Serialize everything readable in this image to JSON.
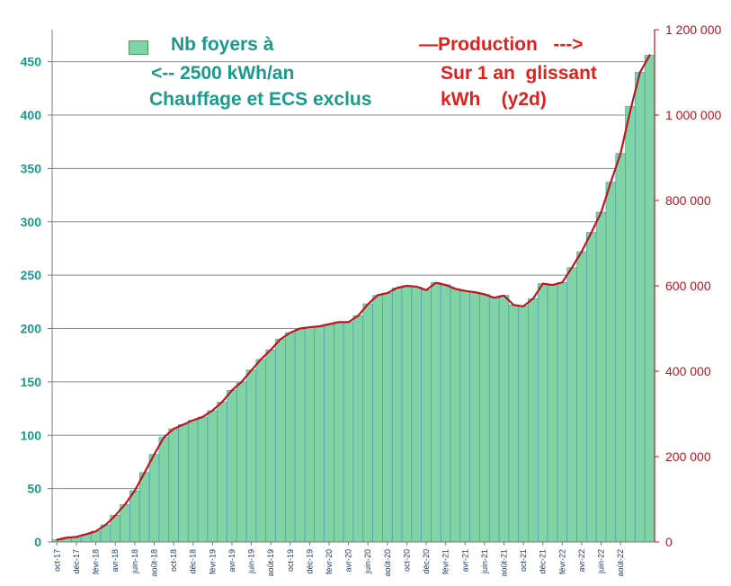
{
  "chart_data": {
    "type": "bar+line",
    "legend": {
      "bars_line1": "Nb foyers à",
      "bars_line2": "<-- 2500 kWh/an",
      "bars_line3": "Chauffage et ECS exclus",
      "line_line1": "—Production   --->",
      "line_line2": "Sur 1 an  glissant",
      "line_line3": "kWh    (y2d)"
    },
    "left_axis": {
      "ylim": [
        0,
        480
      ],
      "ticks": [
        0,
        50,
        100,
        150,
        200,
        250,
        300,
        350,
        400,
        450
      ],
      "tick_labels": [
        "0",
        "50",
        "100",
        "150",
        "200",
        "250",
        "300",
        "350",
        "400",
        "450"
      ]
    },
    "right_axis": {
      "ylim": [
        0,
        1200000
      ],
      "ticks": [
        0,
        200000,
        400000,
        600000,
        800000,
        1000000,
        1200000
      ],
      "tick_labels": [
        "0",
        "200 000",
        "400 000",
        "600 000",
        "800 000",
        "1 000 000",
        "1 200 000"
      ]
    },
    "x_tick_labels": [
      "oct-17",
      "déc-17",
      "févr-18",
      "avr-18",
      "juin-18",
      "août-18",
      "oct-18",
      "déc-18",
      "févr-19",
      "avr-19",
      "juin-19",
      "août-19",
      "oct-19",
      "déc-19",
      "févr-20",
      "avr-20",
      "juin-20",
      "août-20",
      "oct-20",
      "déc-20",
      "févr-21",
      "avr-21",
      "juin-21",
      "août-21",
      "oct-21",
      "déc-21",
      "févr-22",
      "avr-22",
      "juin-22",
      "août-22"
    ],
    "series": [
      {
        "name": "Nb foyers à 2500 kWh/an",
        "axis": "left",
        "type": "bar",
        "color": "#7fd4a6",
        "values": [
          2,
          4,
          4,
          7,
          10,
          16,
          25,
          35,
          48,
          65,
          82,
          98,
          106,
          110,
          114,
          117,
          123,
          131,
          142,
          150,
          161,
          171,
          180,
          190,
          196,
          200,
          201,
          202,
          204,
          206,
          206,
          212,
          223,
          231,
          233,
          238,
          240,
          239,
          236,
          243,
          241,
          237,
          235,
          234,
          232,
          229,
          231,
          222,
          221,
          228,
          242,
          241,
          243,
          257,
          272,
          290,
          309,
          337,
          364,
          408,
          440,
          456
        ],
        "end_label_index": 62
      },
      {
        "name": "Production sur 1 an glissant kWh",
        "axis": "right",
        "type": "line",
        "color": "#c0141e",
        "values": [
          5000,
          10000,
          12000,
          18000,
          25000,
          40000,
          62000,
          88000,
          120000,
          162000,
          205000,
          245000,
          265000,
          275000,
          285000,
          293000,
          308000,
          328000,
          355000,
          375000,
          402000,
          428000,
          450000,
          475000,
          490000,
          500000,
          503000,
          505000,
          510000,
          515000,
          515000,
          530000,
          557000,
          578000,
          583000,
          595000,
          600000,
          598000,
          590000,
          607000,
          602000,
          593000,
          588000,
          585000,
          580000,
          572000,
          577000,
          555000,
          552000,
          570000,
          605000,
          602000,
          608000,
          643000,
          680000,
          725000,
          772000,
          843000,
          910000,
          1010000,
          1100000,
          1140000
        ]
      }
    ]
  }
}
